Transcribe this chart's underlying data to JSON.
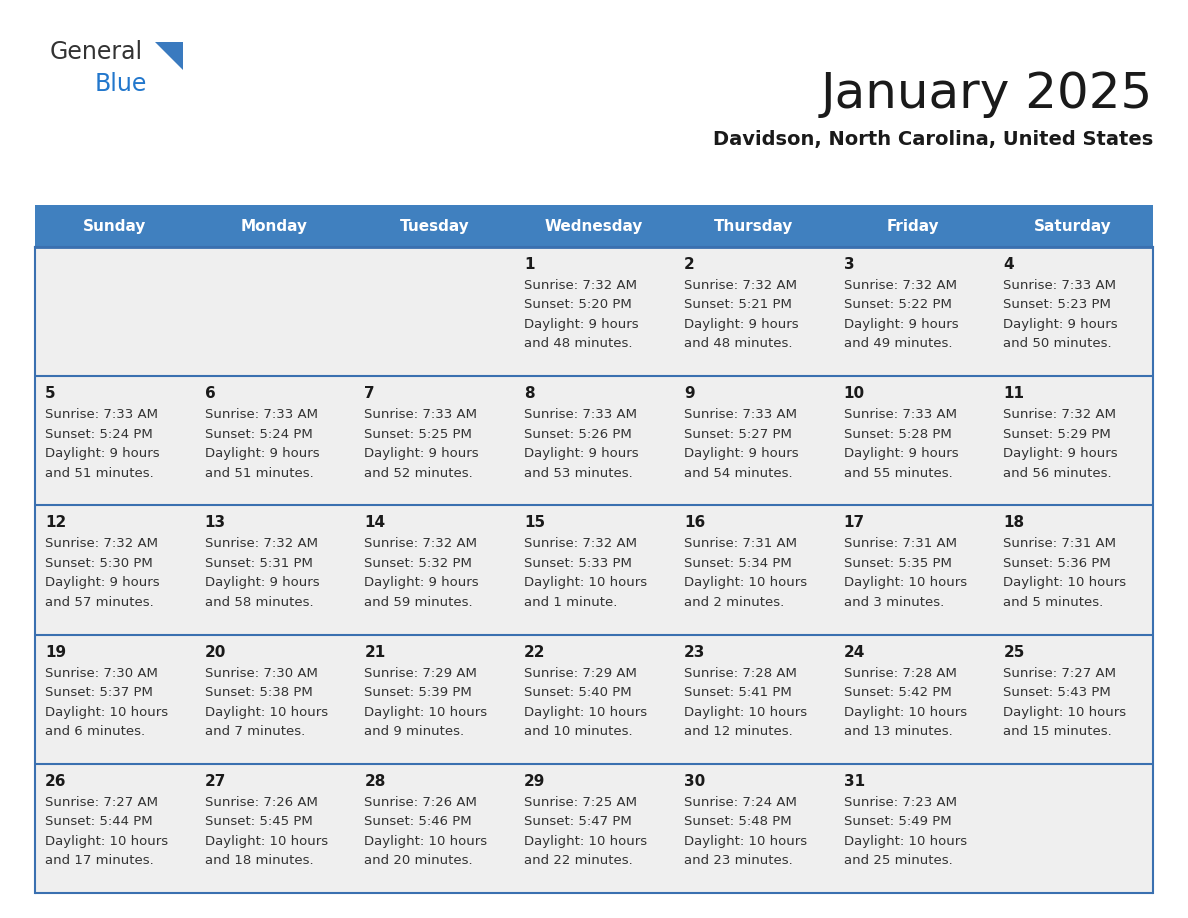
{
  "title": "January 2025",
  "subtitle": "Davidson, North Carolina, United States",
  "header_bg_color": "#4080bf",
  "header_text_color": "#ffffff",
  "cell_bg_color": "#efefef",
  "day_headers": [
    "Sunday",
    "Monday",
    "Tuesday",
    "Wednesday",
    "Thursday",
    "Friday",
    "Saturday"
  ],
  "title_color": "#1a1a1a",
  "subtitle_color": "#1a1a1a",
  "cell_text_color": "#333333",
  "day_num_color": "#1a1a1a",
  "line_color": "#3a70b0",
  "calendar": [
    [
      {
        "day": "",
        "sunrise": "",
        "sunset": "",
        "daylight": ""
      },
      {
        "day": "",
        "sunrise": "",
        "sunset": "",
        "daylight": ""
      },
      {
        "day": "",
        "sunrise": "",
        "sunset": "",
        "daylight": ""
      },
      {
        "day": "1",
        "sunrise": "7:32 AM",
        "sunset": "5:20 PM",
        "daylight": "9 hours\nand 48 minutes."
      },
      {
        "day": "2",
        "sunrise": "7:32 AM",
        "sunset": "5:21 PM",
        "daylight": "9 hours\nand 48 minutes."
      },
      {
        "day": "3",
        "sunrise": "7:32 AM",
        "sunset": "5:22 PM",
        "daylight": "9 hours\nand 49 minutes."
      },
      {
        "day": "4",
        "sunrise": "7:33 AM",
        "sunset": "5:23 PM",
        "daylight": "9 hours\nand 50 minutes."
      }
    ],
    [
      {
        "day": "5",
        "sunrise": "7:33 AM",
        "sunset": "5:24 PM",
        "daylight": "9 hours\nand 51 minutes."
      },
      {
        "day": "6",
        "sunrise": "7:33 AM",
        "sunset": "5:24 PM",
        "daylight": "9 hours\nand 51 minutes."
      },
      {
        "day": "7",
        "sunrise": "7:33 AM",
        "sunset": "5:25 PM",
        "daylight": "9 hours\nand 52 minutes."
      },
      {
        "day": "8",
        "sunrise": "7:33 AM",
        "sunset": "5:26 PM",
        "daylight": "9 hours\nand 53 minutes."
      },
      {
        "day": "9",
        "sunrise": "7:33 AM",
        "sunset": "5:27 PM",
        "daylight": "9 hours\nand 54 minutes."
      },
      {
        "day": "10",
        "sunrise": "7:33 AM",
        "sunset": "5:28 PM",
        "daylight": "9 hours\nand 55 minutes."
      },
      {
        "day": "11",
        "sunrise": "7:32 AM",
        "sunset": "5:29 PM",
        "daylight": "9 hours\nand 56 minutes."
      }
    ],
    [
      {
        "day": "12",
        "sunrise": "7:32 AM",
        "sunset": "5:30 PM",
        "daylight": "9 hours\nand 57 minutes."
      },
      {
        "day": "13",
        "sunrise": "7:32 AM",
        "sunset": "5:31 PM",
        "daylight": "9 hours\nand 58 minutes."
      },
      {
        "day": "14",
        "sunrise": "7:32 AM",
        "sunset": "5:32 PM",
        "daylight": "9 hours\nand 59 minutes."
      },
      {
        "day": "15",
        "sunrise": "7:32 AM",
        "sunset": "5:33 PM",
        "daylight": "10 hours\nand 1 minute."
      },
      {
        "day": "16",
        "sunrise": "7:31 AM",
        "sunset": "5:34 PM",
        "daylight": "10 hours\nand 2 minutes."
      },
      {
        "day": "17",
        "sunrise": "7:31 AM",
        "sunset": "5:35 PM",
        "daylight": "10 hours\nand 3 minutes."
      },
      {
        "day": "18",
        "sunrise": "7:31 AM",
        "sunset": "5:36 PM",
        "daylight": "10 hours\nand 5 minutes."
      }
    ],
    [
      {
        "day": "19",
        "sunrise": "7:30 AM",
        "sunset": "5:37 PM",
        "daylight": "10 hours\nand 6 minutes."
      },
      {
        "day": "20",
        "sunrise": "7:30 AM",
        "sunset": "5:38 PM",
        "daylight": "10 hours\nand 7 minutes."
      },
      {
        "day": "21",
        "sunrise": "7:29 AM",
        "sunset": "5:39 PM",
        "daylight": "10 hours\nand 9 minutes."
      },
      {
        "day": "22",
        "sunrise": "7:29 AM",
        "sunset": "5:40 PM",
        "daylight": "10 hours\nand 10 minutes."
      },
      {
        "day": "23",
        "sunrise": "7:28 AM",
        "sunset": "5:41 PM",
        "daylight": "10 hours\nand 12 minutes."
      },
      {
        "day": "24",
        "sunrise": "7:28 AM",
        "sunset": "5:42 PM",
        "daylight": "10 hours\nand 13 minutes."
      },
      {
        "day": "25",
        "sunrise": "7:27 AM",
        "sunset": "5:43 PM",
        "daylight": "10 hours\nand 15 minutes."
      }
    ],
    [
      {
        "day": "26",
        "sunrise": "7:27 AM",
        "sunset": "5:44 PM",
        "daylight": "10 hours\nand 17 minutes."
      },
      {
        "day": "27",
        "sunrise": "7:26 AM",
        "sunset": "5:45 PM",
        "daylight": "10 hours\nand 18 minutes."
      },
      {
        "day": "28",
        "sunrise": "7:26 AM",
        "sunset": "5:46 PM",
        "daylight": "10 hours\nand 20 minutes."
      },
      {
        "day": "29",
        "sunrise": "7:25 AM",
        "sunset": "5:47 PM",
        "daylight": "10 hours\nand 22 minutes."
      },
      {
        "day": "30",
        "sunrise": "7:24 AM",
        "sunset": "5:48 PM",
        "daylight": "10 hours\nand 23 minutes."
      },
      {
        "day": "31",
        "sunrise": "7:23 AM",
        "sunset": "5:49 PM",
        "daylight": "10 hours\nand 25 minutes."
      },
      {
        "day": "",
        "sunrise": "",
        "sunset": "",
        "daylight": ""
      }
    ]
  ]
}
